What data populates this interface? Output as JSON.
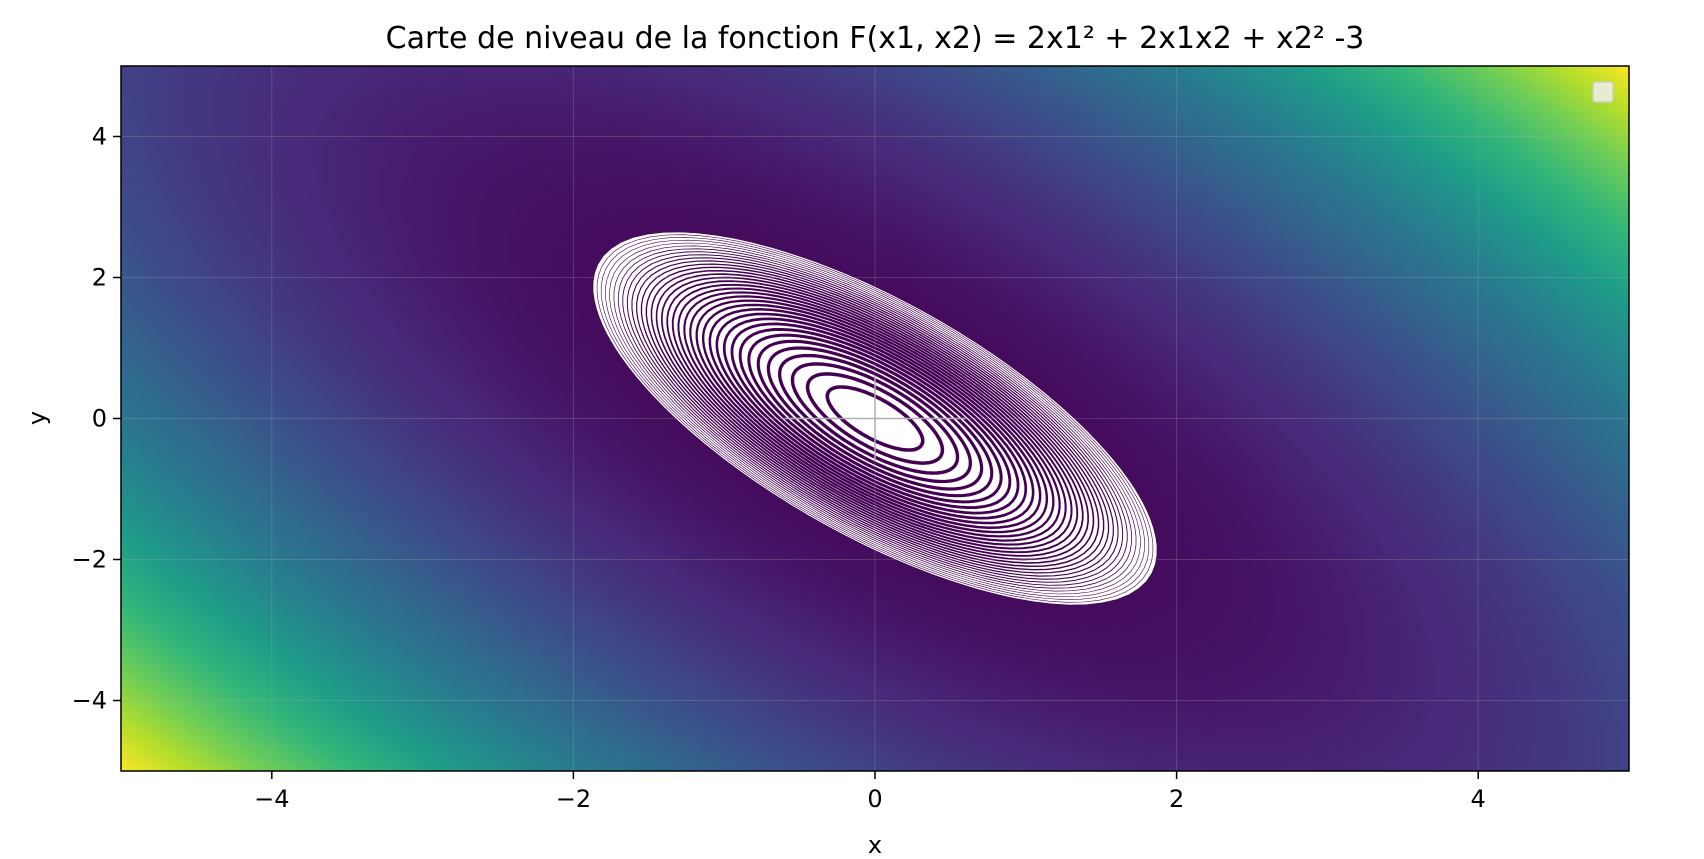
{
  "chart_data": {
    "type": "contour",
    "title": "Carte de niveau de la fonction F(x1, x2) = 2x1² + 2x1x2 + x2² -3",
    "xlabel": "x",
    "ylabel": "y",
    "xlim": [
      -5,
      5
    ],
    "ylim": [
      -5,
      5
    ],
    "xticks": [
      -4,
      -2,
      0,
      2,
      4
    ],
    "yticks": [
      -4,
      -2,
      0,
      2,
      4
    ],
    "tick_labels_x": [
      "−4",
      "−2",
      "0",
      "2",
      "4"
    ],
    "tick_labels_y": [
      "−4",
      "−2",
      "0",
      "2",
      "4"
    ],
    "function": {
      "a": 2,
      "b": 2,
      "c": 1,
      "d": -3
    },
    "colormap": "viridis",
    "contour_color": "#440154",
    "contour_background": "#ffffff",
    "contour_levels": {
      "min": -2.9,
      "step": 0.1
    },
    "grid": true,
    "legend": {
      "placement": "top-right",
      "entries": []
    }
  }
}
